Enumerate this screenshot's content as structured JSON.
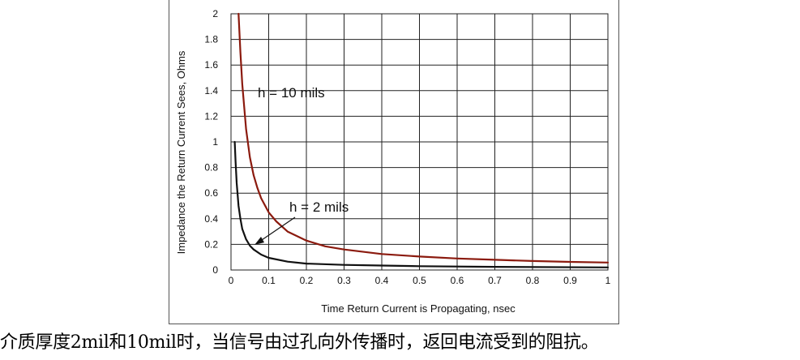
{
  "chart_data": {
    "type": "line",
    "xlabel": "Time Return Current is Propagating, nsec",
    "ylabel": "Impedance the Return Current Sees, Ohms",
    "xlim": [
      0,
      1.0
    ],
    "ylim": [
      0,
      2
    ],
    "x_ticks": [
      "0",
      "0.1",
      "0.2",
      "0.3",
      "0.4",
      "0.5",
      "0.6",
      "0.7",
      "0.8",
      "0.9",
      "1"
    ],
    "y_ticks": [
      "0",
      "0.2",
      "0.4",
      "0.6",
      "0.8",
      "1",
      "1.2",
      "1.4",
      "1.6",
      "1.8",
      "2"
    ],
    "grid": true,
    "series": [
      {
        "name": "h = 10 mils",
        "color": "#8b1a0e",
        "x": [
          0.02,
          0.025,
          0.03,
          0.04,
          0.05,
          0.06,
          0.07,
          0.08,
          0.1,
          0.12,
          0.15,
          0.2,
          0.25,
          0.3,
          0.4,
          0.5,
          0.6,
          0.7,
          0.8,
          0.9,
          1.0
        ],
        "y": [
          2.0,
          1.7,
          1.45,
          1.1,
          0.88,
          0.74,
          0.64,
          0.56,
          0.45,
          0.38,
          0.3,
          0.23,
          0.185,
          0.16,
          0.125,
          0.105,
          0.09,
          0.08,
          0.07,
          0.063,
          0.058
        ]
      },
      {
        "name": "h = 2 mils",
        "color": "#111111",
        "x": [
          0.01,
          0.012,
          0.015,
          0.02,
          0.025,
          0.03,
          0.04,
          0.05,
          0.06,
          0.08,
          0.1,
          0.15,
          0.2,
          0.3,
          0.4,
          0.5,
          0.7,
          1.0
        ],
        "y": [
          1.0,
          0.85,
          0.68,
          0.5,
          0.4,
          0.32,
          0.24,
          0.19,
          0.16,
          0.12,
          0.095,
          0.065,
          0.05,
          0.04,
          0.035,
          0.03,
          0.025,
          0.02
        ]
      }
    ],
    "annotations": [
      "h = 10 mils",
      "h = 2 mils"
    ]
  },
  "caption": "介质厚度2mil和10mil时，当信号由过孔向外传播时，返回电流受到的阻抗。"
}
